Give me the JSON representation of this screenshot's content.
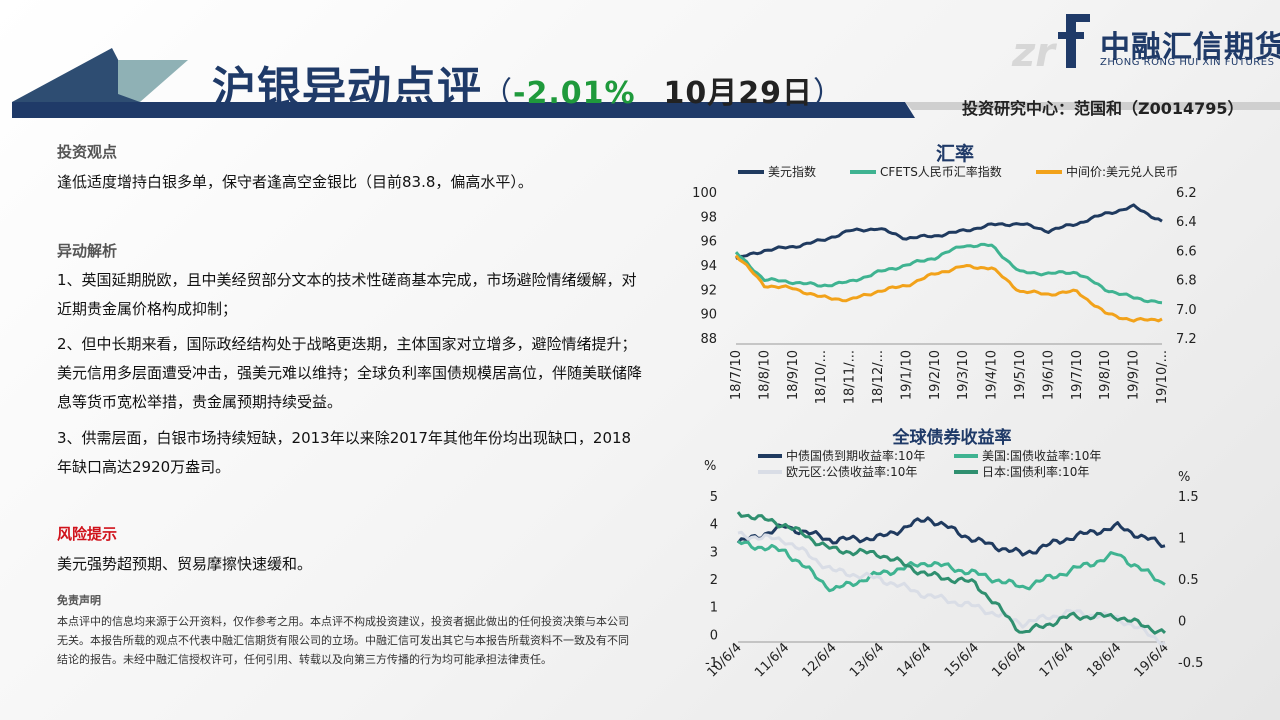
{
  "header": {
    "title_main": "沪银异动点评",
    "paren_open": "（",
    "pct": "-2.01%",
    "date": "10月29日",
    "paren_close": "）",
    "company_name": "中融汇信期货",
    "company_sub": "ZHONG RONG HUI XIN FUTURES",
    "researcher": "投资研究中心：范国和（Z0014795）",
    "colors": {
      "navy": "#1f3a68",
      "green": "#1f9a3c",
      "red": "#d0121b"
    }
  },
  "content": {
    "view_title": "投资观点",
    "view_text": "逢低适度增持白银多单，保守者逢高空金银比（目前83.8，偏高水平）。",
    "analysis_title": "异动解析",
    "analysis_items": [
      "1、英国延期脱欧，且中美经贸部分文本的技术性磋商基本完成，市场避险情绪缓解，对近期贵金属价格构成抑制；",
      "2、但中长期来看，国际政经结构处于战略更迭期，主体国家对立增多，避险情绪提升；美元信用多层面遭受冲击，强美元难以维持；全球负利率国债规模居高位，伴随美联储降息等货币宽松举措，贵金属预期持续受益。",
      "3、供需层面，白银市场持续短缺，2013年以来除2017年其他年份均出现缺口，2018年缺口高达2920万盎司。"
    ],
    "risk_title": "风险提示",
    "risk_text": "美元强势超预期、贸易摩擦快速缓和。",
    "disclaimer_title": "免责声明",
    "disclaimer_text": "本点评中的信息均来源于公开资料，仅作参考之用。本点评不构成投资建议，投资者据此做出的任何投资决策与本公司无关。本报告所载的观点不代表中融汇信期货有限公司的立场。中融汇信可发出其它与本报告所载资料不一致及有不同结论的报告。未经中融汇信授权许可，任何引用、转载以及向第三方传播的行为均可能承担法律责任。"
  },
  "chart_data": [
    {
      "type": "line",
      "title": "汇率",
      "legend_position": "top",
      "x": [
        "18/7/10",
        "18/8/10",
        "18/9/10",
        "18/10/...",
        "18/11/...",
        "18/12/...",
        "19/1/10",
        "19/2/10",
        "19/3/10",
        "19/4/10",
        "19/5/10",
        "19/6/10",
        "19/7/10",
        "19/8/10",
        "19/9/10",
        "19/10/..."
      ],
      "left_axis": {
        "ylim": [
          88,
          100
        ],
        "ticks": [
          "100",
          "98",
          "96",
          "94",
          "92",
          "90",
          "88"
        ]
      },
      "right_axis": {
        "ylim": [
          6.2,
          7.2
        ],
        "reversed": true,
        "ticks": [
          "6.2",
          "6.4",
          "6.6",
          "6.8",
          "7.0",
          "7.2"
        ]
      },
      "series": [
        {
          "name": "美元指数",
          "axis": "left",
          "color": "#1f3a5f",
          "values": [
            94.5,
            95.2,
            95.5,
            96.0,
            96.8,
            97.0,
            96.2,
            96.4,
            96.8,
            97.3,
            97.4,
            96.8,
            97.4,
            98.2,
            98.8,
            97.6
          ]
        },
        {
          "name": "CFETS人民币汇率指数",
          "axis": "left",
          "color": "#3fb391",
          "values": [
            95.0,
            92.8,
            92.6,
            92.3,
            92.6,
            93.4,
            94.0,
            94.6,
            95.6,
            95.6,
            93.4,
            93.3,
            93.4,
            92.0,
            91.3,
            90.9
          ]
        },
        {
          "name": "中间价:美元兑人民币",
          "axis": "right",
          "color": "#f2a21a",
          "values": [
            6.63,
            6.84,
            6.86,
            6.92,
            6.94,
            6.88,
            6.84,
            6.76,
            6.71,
            6.72,
            6.88,
            6.9,
            6.88,
            7.03,
            7.08,
            7.07
          ]
        }
      ]
    },
    {
      "type": "line",
      "title": "全球债券收益率",
      "legend_position": "top",
      "x": [
        "10/6/4",
        "11/6/4",
        "12/6/4",
        "13/6/4",
        "14/6/4",
        "15/6/4",
        "16/6/4",
        "17/6/4",
        "18/6/4",
        "19/6/4"
      ],
      "left_axis": {
        "unit": "%",
        "ylim": [
          -1,
          5
        ],
        "ticks": [
          "5",
          "4",
          "3",
          "2",
          "1",
          "0",
          "-1"
        ]
      },
      "right_axis": {
        "unit": "%",
        "ylim": [
          -0.5,
          1.5
        ],
        "ticks": [
          "1.5",
          "1",
          "0.5",
          "0",
          "-0.5"
        ]
      },
      "series": [
        {
          "name": "中债国债到期收益率:10年",
          "axis": "left",
          "color": "#1f3a5f",
          "values": [
            3.3,
            3.9,
            3.4,
            3.5,
            4.2,
            3.4,
            2.9,
            3.5,
            3.9,
            3.2
          ]
        },
        {
          "name": "美国:国债收益率:10年",
          "axis": "left",
          "color": "#3fb391",
          "values": [
            3.3,
            3.0,
            1.6,
            2.2,
            2.6,
            2.2,
            1.7,
            2.3,
            2.9,
            1.8
          ]
        },
        {
          "name": "欧元区:公债收益率:10年",
          "axis": "left",
          "color": "#d9dde6",
          "values": [
            3.6,
            3.4,
            2.3,
            2.0,
            1.4,
            1.0,
            0.4,
            0.8,
            0.6,
            -0.3
          ]
        },
        {
          "name": "日本:国债利率:10年",
          "axis": "right",
          "color": "#2f8f6f",
          "values": [
            1.3,
            1.15,
            0.85,
            0.8,
            0.55,
            0.45,
            -0.15,
            0.05,
            0.05,
            -0.15
          ]
        }
      ]
    }
  ]
}
